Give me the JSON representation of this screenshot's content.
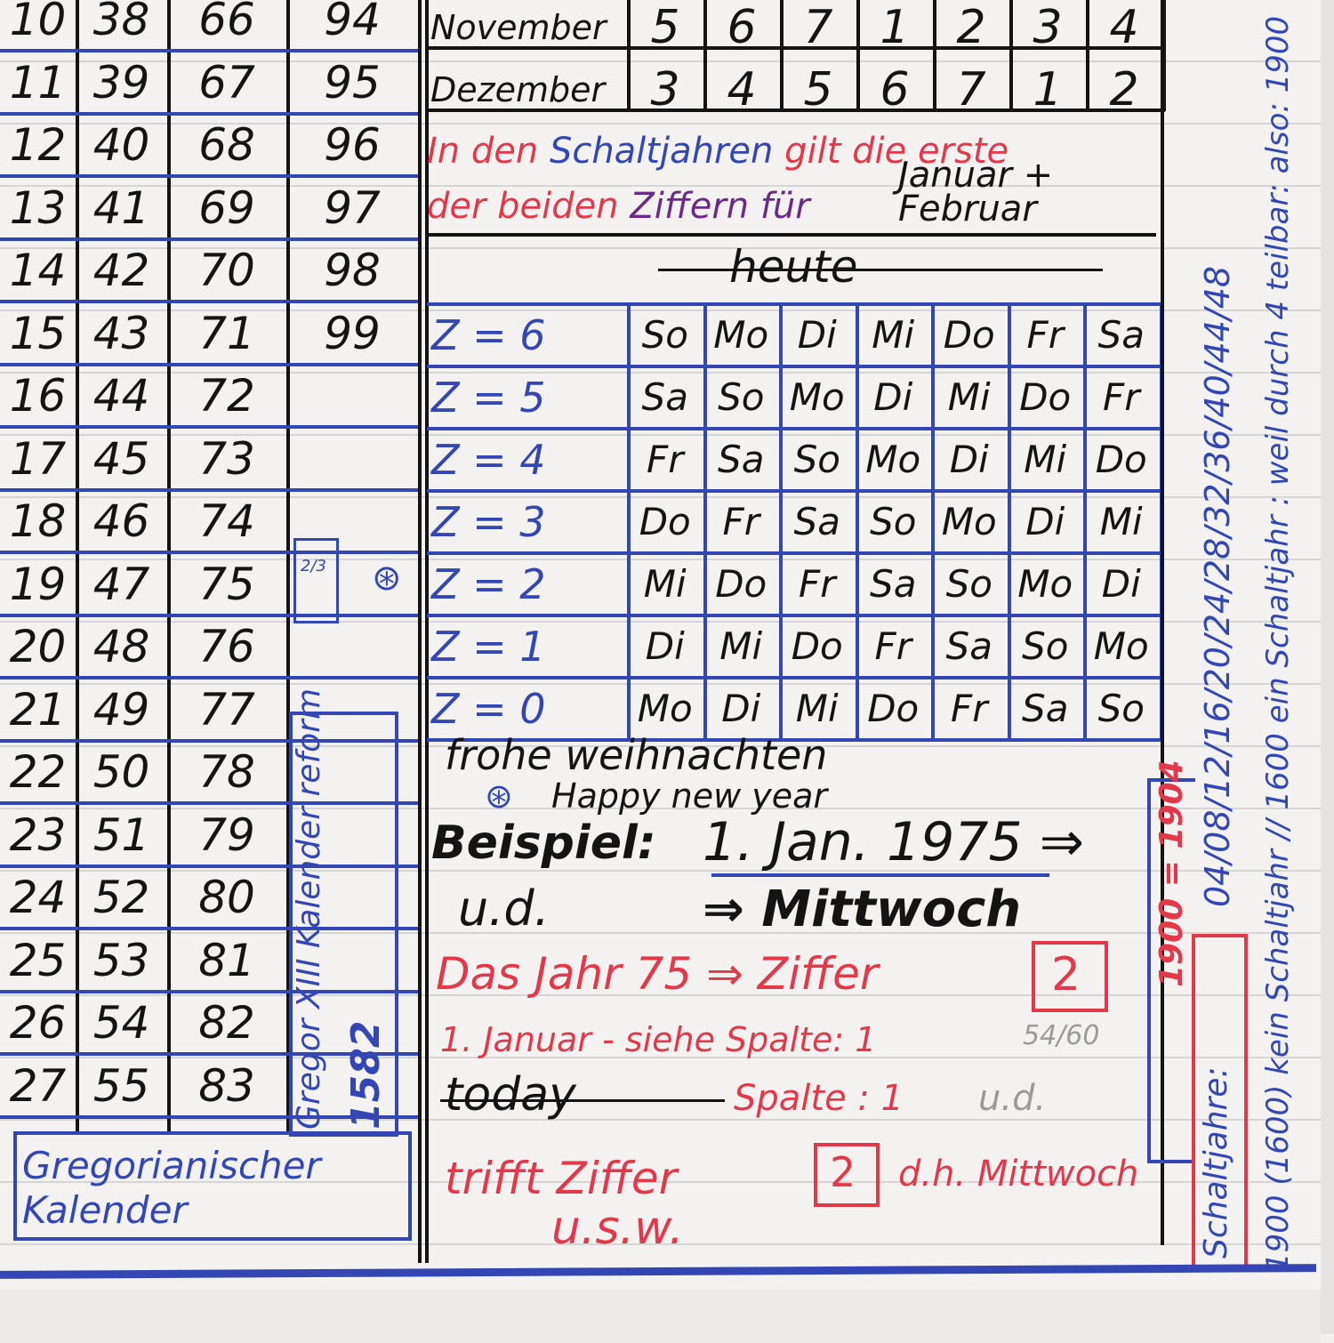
{
  "number_table": {
    "columns": [
      [
        "10",
        "11",
        "12",
        "13",
        "14",
        "15",
        "16",
        "17",
        "18",
        "19",
        "20",
        "21",
        "22",
        "23",
        "24",
        "25",
        "26",
        "27"
      ],
      [
        "38",
        "39",
        "40",
        "41",
        "42",
        "43",
        "44",
        "45",
        "46",
        "47",
        "48",
        "49",
        "50",
        "51",
        "52",
        "53",
        "54",
        "55"
      ],
      [
        "66",
        "67",
        "68",
        "69",
        "70",
        "71",
        "72",
        "73",
        "74",
        "75",
        "76",
        "77",
        "78",
        "79",
        "80",
        "81",
        "82",
        "83"
      ],
      [
        "94",
        "95",
        "96",
        "97",
        "98",
        "99"
      ]
    ]
  },
  "month_table": {
    "rows": [
      {
        "month": "November",
        "digits": [
          "5",
          "6",
          "7",
          "1",
          "2",
          "3",
          "4"
        ]
      },
      {
        "month": "Dezember",
        "digits": [
          "3",
          "4",
          "5",
          "6",
          "7",
          "1",
          "2"
        ]
      }
    ]
  },
  "leap_note": {
    "line1_red": "In den",
    "line1_blue": "Schaltjahren",
    "line1_red2": "gilt die erste",
    "line2_red": "der beiden",
    "line2_purple": "Ziffern für",
    "line2_black": "Januar + Februar"
  },
  "heute": "heute",
  "weekday_table": {
    "rows": [
      {
        "z": "Z = 6",
        "days": [
          "So",
          "Mo",
          "Di",
          "Mi",
          "Do",
          "Fr",
          "Sa"
        ]
      },
      {
        "z": "Z = 5",
        "days": [
          "Sa",
          "So",
          "Mo",
          "Di",
          "Mi",
          "Do",
          "Fr"
        ]
      },
      {
        "z": "Z = 4",
        "days": [
          "Fr",
          "Sa",
          "So",
          "Mo",
          "Di",
          "Mi",
          "Do"
        ]
      },
      {
        "z": "Z = 3",
        "days": [
          "Do",
          "Fr",
          "Sa",
          "So",
          "Mo",
          "Di",
          "Mi"
        ]
      },
      {
        "z": "Z = 2",
        "days": [
          "Mi",
          "Do",
          "Fr",
          "Sa",
          "So",
          "Mo",
          "Di"
        ]
      },
      {
        "z": "Z = 1",
        "days": [
          "Di",
          "Mi",
          "Do",
          "Fr",
          "Sa",
          "So",
          "Mo"
        ]
      },
      {
        "z": "Z = 0",
        "days": [
          "Mo",
          "Di",
          "Mi",
          "Do",
          "Fr",
          "Sa",
          "So"
        ]
      }
    ]
  },
  "greetings": {
    "line1": "frohe weihnachten",
    "line2": "Happy new year"
  },
  "example": {
    "label": "Beispiel:",
    "date": "1. Jan. 1975 ⇒",
    "line2_left": "u.d.",
    "line2_right": "⇒ Mittwoch",
    "year_line": "Das Jahr 75 ⇒ Ziffer",
    "year_digit": "2",
    "january_line": "1. Januar - siehe Spalte: 1",
    "today": "today",
    "column_line": "Spalte : 1",
    "hits_line": "trifft Ziffer",
    "hits_digit": "2",
    "meaning": "d.h. Mittwoch",
    "usw": "u.s.w.",
    "pencil_fraction": "54/60",
    "pencil_ud": "u.d."
  },
  "left_notes": {
    "gregorian": "Gregorianischer",
    "kalender": "Kalender",
    "reform": "Gregor XIII Kalender reform",
    "reform_year": "1582",
    "small_box": "2/3"
  },
  "right_margin": {
    "leap_years": "04/08/12/16/20/24/28/32/36/40/44/48",
    "schaltjahre": "Schaltjahre:",
    "note": "1900 (1600) kein Schaltjahr // 1600 ein Schaltjahr : weil durch 4 teilbar: also: 1900",
    "red_year": "1900 = 1904"
  },
  "colors": {
    "ink_black": "#141414",
    "ink_blue": "#3446b4",
    "ink_red": "#e2384a",
    "paper": "#f3f2f0"
  }
}
